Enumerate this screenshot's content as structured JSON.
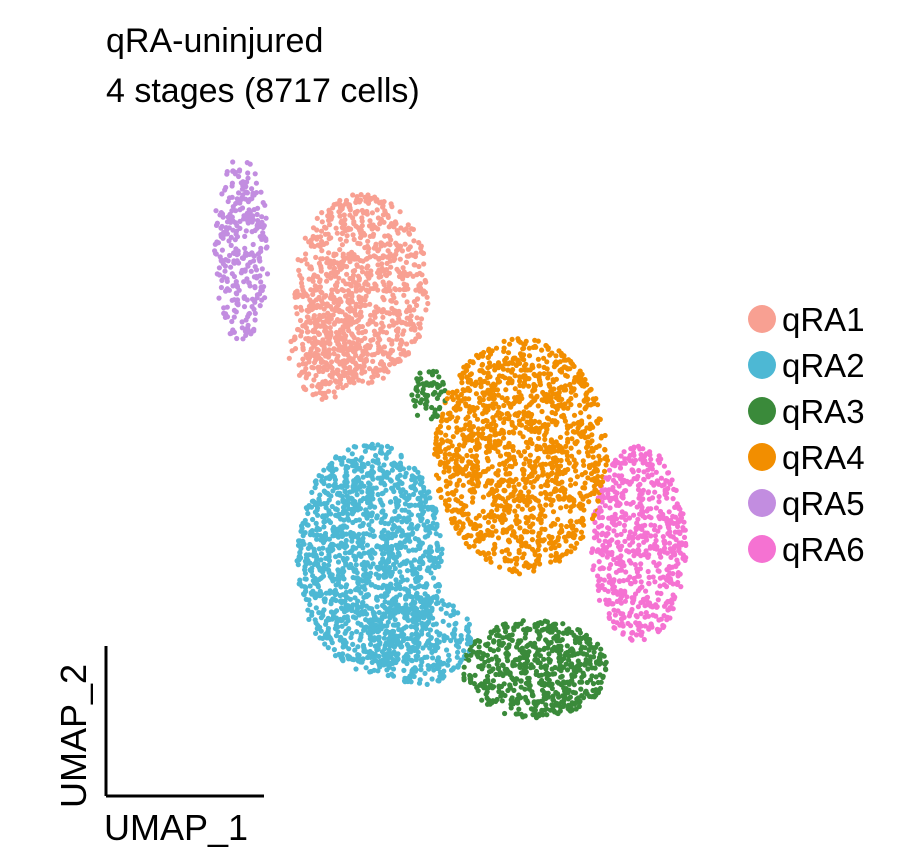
{
  "chart_data": {
    "type": "scatter",
    "title": "qRA-uninjured",
    "subtitle": "4 stages (8717 cells)",
    "xlabel": "UMAP_1",
    "ylabel": "UMAP_2",
    "axes": "corner-arrows",
    "grid": false,
    "legend_position": "right",
    "xlim": [
      -10,
      10
    ],
    "ylim": [
      -10,
      10
    ],
    "series": [
      {
        "name": "qRA1",
        "color": "#F8A092",
        "clusters": [
          {
            "cx": -3.7,
            "cy": 5.3,
            "rx": 2.4,
            "ry": 2.9,
            "n": 900
          },
          {
            "cx": -5.0,
            "cy": 3.5,
            "rx": 1.3,
            "ry": 1.6,
            "n": 200
          }
        ]
      },
      {
        "name": "qRA2",
        "color": "#4DB8D4",
        "clusters": [
          {
            "cx": -3.4,
            "cy": -2.9,
            "rx": 2.6,
            "ry": 3.5,
            "n": 1400
          },
          {
            "cx": -1.6,
            "cy": -5.4,
            "rx": 1.9,
            "ry": 1.4,
            "n": 300
          }
        ]
      },
      {
        "name": "qRA3",
        "color": "#3A8A3A",
        "clusters": [
          {
            "cx": 2.5,
            "cy": -6.3,
            "rx": 2.6,
            "ry": 1.5,
            "n": 600
          },
          {
            "cx": -1.3,
            "cy": 2.0,
            "rx": 0.6,
            "ry": 0.9,
            "n": 60
          }
        ]
      },
      {
        "name": "qRA4",
        "color": "#F28E00",
        "clusters": [
          {
            "cx": 2.0,
            "cy": 0.2,
            "rx": 3.1,
            "ry": 3.6,
            "n": 1400
          }
        ]
      },
      {
        "name": "qRA5",
        "color": "#C28DE0",
        "clusters": [
          {
            "cx": -8.0,
            "cy": 6.5,
            "rx": 1.0,
            "ry": 2.8,
            "n": 300
          }
        ]
      },
      {
        "name": "qRA6",
        "color": "#F572D2",
        "clusters": [
          {
            "cx": 6.2,
            "cy": -2.5,
            "rx": 1.7,
            "ry": 3.0,
            "n": 650
          }
        ]
      }
    ]
  }
}
